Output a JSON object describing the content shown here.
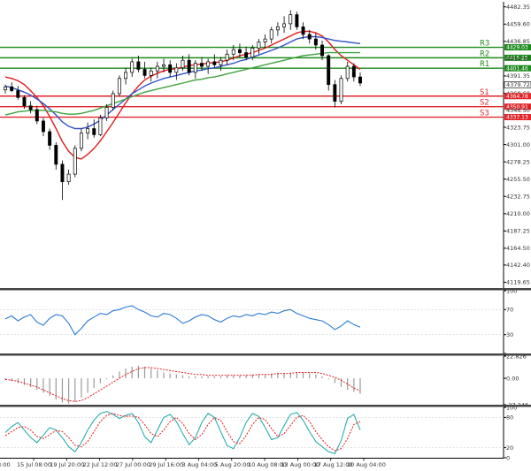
{
  "chart_data": [
    {
      "type": "candlestick",
      "x_labels": [
        "15 Jul 08:00",
        "19 Jul 20:00",
        "22 Jul 12:00",
        "27 Jul 00:00",
        "29 Jul 16:00",
        "3 Aug 04:00",
        "5 Aug 20:00",
        "10 Aug 08:00",
        "13 Aug 00:00",
        "17 Aug 12:00",
        "20 Aug 04:00"
      ],
      "x_label_partial_left": "8:00",
      "y_ticks": [
        4482.35,
        4459.6,
        4436.85,
        4391.35,
        4368.6,
        4323.75,
        4301.0,
        4278.25,
        4255.5,
        4232.75,
        4210.0,
        4187.25,
        4164.5,
        4142.4,
        4119.65
      ],
      "ylim": [
        4112.0,
        4489.0
      ],
      "candles": [
        {
          "o": 4373,
          "h": 4380,
          "l": 4368,
          "c": 4377
        },
        {
          "o": 4377,
          "h": 4383,
          "l": 4370,
          "c": 4372
        },
        {
          "o": 4372,
          "h": 4378,
          "l": 4360,
          "c": 4363
        },
        {
          "o": 4363,
          "h": 4366,
          "l": 4348,
          "c": 4352
        },
        {
          "o": 4352,
          "h": 4358,
          "l": 4342,
          "c": 4347
        },
        {
          "o": 4347,
          "h": 4352,
          "l": 4328,
          "c": 4332
        },
        {
          "o": 4332,
          "h": 4336,
          "l": 4312,
          "c": 4318
        },
        {
          "o": 4318,
          "h": 4322,
          "l": 4294,
          "c": 4300
        },
        {
          "o": 4300,
          "h": 4304,
          "l": 4268,
          "c": 4275
        },
        {
          "o": 4275,
          "h": 4280,
          "l": 4228,
          "c": 4252
        },
        {
          "o": 4252,
          "h": 4268,
          "l": 4248,
          "c": 4262
        },
        {
          "o": 4262,
          "h": 4300,
          "l": 4258,
          "c": 4296
        },
        {
          "o": 4296,
          "h": 4322,
          "l": 4292,
          "c": 4316
        },
        {
          "o": 4316,
          "h": 4330,
          "l": 4308,
          "c": 4322
        },
        {
          "o": 4322,
          "h": 4334,
          "l": 4310,
          "c": 4314
        },
        {
          "o": 4314,
          "h": 4340,
          "l": 4312,
          "c": 4336
        },
        {
          "o": 4336,
          "h": 4354,
          "l": 4332,
          "c": 4350
        },
        {
          "o": 4350,
          "h": 4372,
          "l": 4346,
          "c": 4368
        },
        {
          "o": 4368,
          "h": 4392,
          "l": 4364,
          "c": 4388
        },
        {
          "o": 4388,
          "h": 4402,
          "l": 4380,
          "c": 4396
        },
        {
          "o": 4396,
          "h": 4414,
          "l": 4390,
          "c": 4410
        },
        {
          "o": 4410,
          "h": 4418,
          "l": 4396,
          "c": 4400
        },
        {
          "o": 4400,
          "h": 4410,
          "l": 4388,
          "c": 4392
        },
        {
          "o": 4392,
          "h": 4402,
          "l": 4384,
          "c": 4398
        },
        {
          "o": 4398,
          "h": 4410,
          "l": 4388,
          "c": 4404
        },
        {
          "o": 4404,
          "h": 4414,
          "l": 4396,
          "c": 4406
        },
        {
          "o": 4406,
          "h": 4412,
          "l": 4390,
          "c": 4396
        },
        {
          "o": 4396,
          "h": 4408,
          "l": 4386,
          "c": 4402
        },
        {
          "o": 4402,
          "h": 4418,
          "l": 4398,
          "c": 4412
        },
        {
          "o": 4412,
          "h": 4420,
          "l": 4392,
          "c": 4396
        },
        {
          "o": 4396,
          "h": 4412,
          "l": 4388,
          "c": 4408
        },
        {
          "o": 4408,
          "h": 4416,
          "l": 4398,
          "c": 4404
        },
        {
          "o": 4404,
          "h": 4414,
          "l": 4394,
          "c": 4410
        },
        {
          "o": 4410,
          "h": 4420,
          "l": 4402,
          "c": 4406
        },
        {
          "o": 4406,
          "h": 4416,
          "l": 4398,
          "c": 4412
        },
        {
          "o": 4412,
          "h": 4426,
          "l": 4406,
          "c": 4420
        },
        {
          "o": 4420,
          "h": 4432,
          "l": 4412,
          "c": 4426
        },
        {
          "o": 4426,
          "h": 4434,
          "l": 4416,
          "c": 4422
        },
        {
          "o": 4422,
          "h": 4430,
          "l": 4412,
          "c": 4416
        },
        {
          "o": 4416,
          "h": 4432,
          "l": 4412,
          "c": 4428
        },
        {
          "o": 4428,
          "h": 4440,
          "l": 4420,
          "c": 4436
        },
        {
          "o": 4436,
          "h": 4446,
          "l": 4428,
          "c": 4440
        },
        {
          "o": 4440,
          "h": 4456,
          "l": 4434,
          "c": 4452
        },
        {
          "o": 4452,
          "h": 4462,
          "l": 4444,
          "c": 4456
        },
        {
          "o": 4456,
          "h": 4470,
          "l": 4448,
          "c": 4460
        },
        {
          "o": 4460,
          "h": 4478,
          "l": 4452,
          "c": 4472
        },
        {
          "o": 4472,
          "h": 4476,
          "l": 4452,
          "c": 4456
        },
        {
          "o": 4456,
          "h": 4462,
          "l": 4440,
          "c": 4446
        },
        {
          "o": 4446,
          "h": 4452,
          "l": 4434,
          "c": 4440
        },
        {
          "o": 4440,
          "h": 4448,
          "l": 4426,
          "c": 4432
        },
        {
          "o": 4432,
          "h": 4438,
          "l": 4412,
          "c": 4418
        },
        {
          "o": 4418,
          "h": 4420,
          "l": 4372,
          "c": 4380
        },
        {
          "o": 4380,
          "h": 4386,
          "l": 4350,
          "c": 4358
        },
        {
          "o": 4358,
          "h": 4392,
          "l": 4354,
          "c": 4388
        },
        {
          "o": 4388,
          "h": 4410,
          "l": 4384,
          "c": 4404
        },
        {
          "o": 4404,
          "h": 4408,
          "l": 4384,
          "c": 4390
        },
        {
          "o": 4390,
          "h": 4396,
          "l": 4378,
          "c": 4382
        }
      ],
      "moving_averages": [
        {
          "color": "#e31a1c",
          "values": [
            4390,
            4388,
            4385,
            4380,
            4372,
            4363,
            4352,
            4338,
            4322,
            4305,
            4292,
            4284,
            4282,
            4288,
            4296,
            4306,
            4318,
            4330,
            4343,
            4356,
            4368,
            4378,
            4386,
            4391,
            4395,
            4398,
            4400,
            4401,
            4403,
            4405,
            4406,
            4407,
            4408,
            4409,
            4410,
            4412,
            4415,
            4418,
            4420,
            4422,
            4425,
            4428,
            4432,
            4436,
            4440,
            4444,
            4448,
            4450,
            4450,
            4448,
            4444,
            4436,
            4426,
            4418,
            4412,
            4406,
            4400
          ]
        },
        {
          "color": "#3353c8",
          "values": [
            4378,
            4376,
            4373,
            4370,
            4366,
            4361,
            4355,
            4348,
            4340,
            4331,
            4325,
            4322,
            4322,
            4324,
            4328,
            4333,
            4340,
            4347,
            4354,
            4361,
            4368,
            4373,
            4378,
            4382,
            4385,
            4388,
            4390,
            4392,
            4394,
            4396,
            4398,
            4399,
            4401,
            4402,
            4404,
            4406,
            4408,
            4411,
            4413,
            4416,
            4419,
            4422,
            4425,
            4428,
            4432,
            4436,
            4440,
            4442,
            4443,
            4443,
            4442,
            4440,
            4438,
            4437,
            4436,
            4435,
            4434
          ]
        },
        {
          "color": "#3fa33f",
          "values": [
            4340,
            4342,
            4344,
            4345,
            4346,
            4346,
            4346,
            4345,
            4344,
            4342,
            4341,
            4341,
            4342,
            4344,
            4346,
            4349,
            4352,
            4355,
            4358,
            4361,
            4364,
            4367,
            4370,
            4372,
            4374,
            4376,
            4378,
            4380,
            4382,
            4384,
            4386,
            4387,
            4389,
            4390,
            4392,
            4394,
            4396,
            4398,
            4400,
            4402,
            4404,
            4406,
            4408,
            4410,
            4412,
            4414,
            4416,
            4418,
            4419,
            4420,
            4421,
            4422,
            4422,
            4422,
            4422,
            4422,
            4422
          ]
        }
      ],
      "levels": [
        {
          "label": "R3",
          "value": 4429.03,
          "color": "#1e8a1e"
        },
        {
          "label": "R2",
          "value": 4415.25,
          "color": "#1e8a1e"
        },
        {
          "label": "R1",
          "value": 4401.46,
          "color": "#1e8a1e"
        },
        {
          "label": "S1",
          "value": 4364.78,
          "color": "#e0262a"
        },
        {
          "label": "S2",
          "value": 4350.91,
          "color": "#e0262a"
        },
        {
          "label": "S3",
          "value": 4337.13,
          "color": "#e0262a"
        }
      ],
      "level_tags": [
        "4429.03",
        "4415.25",
        "4401.46",
        "4364.78",
        "4350.91",
        "4337.13"
      ],
      "current_price": {
        "value": 4379.72,
        "label": "4379.72"
      },
      "extra_axis_labels": [
        "4414.10",
        "4346.50"
      ]
    },
    {
      "type": "line",
      "y_ticks": [
        100,
        70,
        30,
        0
      ],
      "ylim": [
        0,
        100
      ],
      "series": [
        {
          "color": "#2b7bd6",
          "values": [
            55,
            60,
            52,
            58,
            62,
            50,
            45,
            56,
            62,
            60,
            48,
            30,
            40,
            52,
            58,
            64,
            62,
            68,
            70,
            74,
            76,
            70,
            66,
            60,
            58,
            64,
            62,
            56,
            48,
            52,
            58,
            62,
            60,
            54,
            50,
            56,
            60,
            58,
            62,
            60,
            64,
            62,
            66,
            64,
            68,
            70,
            64,
            60,
            56,
            54,
            52,
            46,
            38,
            44,
            52,
            46,
            42
          ]
        }
      ]
    },
    {
      "type": "bar",
      "y_ticks": [
        22.826,
        0.0,
        -27.246
      ],
      "ylim": [
        -27.246,
        22.826
      ],
      "values": [
        -2,
        -3,
        -5,
        -7,
        -9,
        -12,
        -15,
        -18,
        -22,
        -25,
        -26,
        -24,
        -20,
        -15,
        -10,
        -5,
        -1,
        3,
        7,
        10,
        12,
        13,
        12,
        10,
        8,
        6,
        5,
        4,
        3,
        2,
        2,
        2,
        2,
        2,
        2,
        3,
        3,
        3,
        3,
        4,
        4,
        4,
        5,
        5,
        5,
        6,
        6,
        6,
        5,
        4,
        2,
        -1,
        -5,
        -9,
        -12,
        -14,
        -16
      ],
      "series": [
        {
          "color": "#e31a1c",
          "values": [
            -1,
            -2,
            -3,
            -5,
            -7,
            -9,
            -12,
            -15,
            -18,
            -21,
            -23,
            -24,
            -23,
            -20,
            -16,
            -12,
            -8,
            -4,
            0,
            4,
            7,
            10,
            11,
            11,
            10,
            9,
            8,
            7,
            6,
            5,
            4,
            4,
            3,
            3,
            3,
            3,
            3,
            3,
            3,
            3,
            4,
            4,
            4,
            5,
            5,
            5,
            6,
            6,
            6,
            6,
            5,
            3,
            1,
            -2,
            -6,
            -10,
            -13
          ]
        }
      ]
    },
    {
      "type": "line",
      "y_ticks": [
        100,
        80,
        20,
        0
      ],
      "ylim": [
        0,
        100
      ],
      "series": [
        {
          "color": "#17a6a6",
          "values": [
            50,
            62,
            70,
            55,
            40,
            30,
            45,
            60,
            55,
            40,
            22,
            12,
            30,
            55,
            75,
            88,
            92,
            86,
            78,
            84,
            88,
            70,
            42,
            30,
            55,
            80,
            86,
            72,
            48,
            26,
            40,
            70,
            88,
            80,
            52,
            24,
            18,
            40,
            70,
            88,
            82,
            60,
            36,
            40,
            64,
            86,
            90,
            74,
            52,
            32,
            22,
            12,
            8,
            34,
            78,
            86,
            55
          ]
        },
        {
          "color": "#e31a1c",
          "values": [
            44,
            52,
            60,
            62,
            55,
            42,
            38,
            46,
            54,
            52,
            40,
            25,
            22,
            32,
            52,
            72,
            84,
            88,
            84,
            82,
            83,
            80,
            66,
            48,
            42,
            55,
            72,
            80,
            68,
            48,
            36,
            46,
            66,
            80,
            74,
            52,
            32,
            28,
            44,
            66,
            80,
            76,
            58,
            42,
            48,
            64,
            80,
            84,
            72,
            52,
            36,
            22,
            14,
            18,
            38,
            66,
            72
          ]
        }
      ]
    }
  ]
}
